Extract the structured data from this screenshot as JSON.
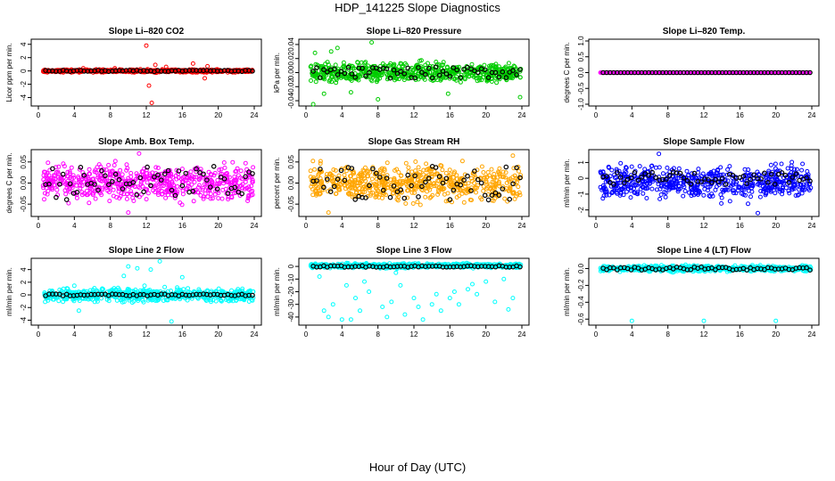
{
  "figure": {
    "title": "HDP_141225  Slope Diagnostics",
    "xlabel": "Hour of Day (UTC)"
  },
  "chart_data": [
    {
      "type": "scatter",
      "title": "Slope Li–820 CO2",
      "ylabel": "Licor ppm per min.",
      "color": "#ff0000",
      "xlim": [
        0,
        24
      ],
      "xticks": [
        0,
        4,
        8,
        12,
        16,
        20,
        24
      ],
      "ylim": [
        -5,
        4.5
      ],
      "yticks": [
        -4,
        -2,
        0,
        2,
        4
      ],
      "ytick_labels": [
        "-4",
        "-2",
        "0",
        "2",
        "4"
      ],
      "series": [
        {
          "name": "samples",
          "band": [
            -0.3,
            0.3
          ],
          "outliers": [
            [
              12.0,
              3.8
            ],
            [
              12.3,
              -2.2
            ],
            [
              12.6,
              -4.8
            ],
            [
              13.0,
              0.9
            ],
            [
              14.2,
              0.6
            ],
            [
              17.2,
              1.1
            ],
            [
              18.5,
              -1.1
            ],
            [
              18.8,
              0.7
            ],
            [
              5.0,
              0.4
            ],
            [
              8.5,
              0.4
            ]
          ]
        },
        {
          "name": "mean",
          "center": 0.0,
          "spread": 0.1
        }
      ]
    },
    {
      "type": "scatter",
      "title": "Slope Li–820 Pressure",
      "ylabel": "kPa per min.",
      "color": "#00cc00",
      "xlim": [
        0,
        24
      ],
      "xticks": [
        0,
        4,
        8,
        12,
        16,
        20,
        24
      ],
      "ylim": [
        -0.045,
        0.045
      ],
      "yticks": [
        -0.04,
        -0.02,
        0,
        0.02,
        0.04
      ],
      "ytick_labels": [
        "-0.04",
        "-0.02",
        "0.00",
        "0.02",
        "0.04"
      ],
      "series": [
        {
          "name": "samples",
          "band": [
            -0.02,
            0.02
          ],
          "outliers": [
            [
              1.0,
              0.028
            ],
            [
              2.0,
              -0.03
            ],
            [
              3.5,
              0.035
            ],
            [
              5.0,
              -0.028
            ],
            [
              7.3,
              0.043
            ],
            [
              8.0,
              -0.038
            ],
            [
              15.8,
              -0.03
            ],
            [
              23.8,
              -0.035
            ],
            [
              0.8,
              -0.045
            ],
            [
              2.8,
              0.03
            ]
          ]
        },
        {
          "name": "mean",
          "center": 0.0,
          "spread": 0.008
        }
      ]
    },
    {
      "type": "scatter",
      "title": "Slope Li–820 Temp.",
      "ylabel": "degrees C per min.",
      "color": "#ff00ff",
      "xlim": [
        0,
        24
      ],
      "xticks": [
        0,
        4,
        8,
        12,
        16,
        20,
        24
      ],
      "ylim": [
        -1.0,
        1.0
      ],
      "yticks": [
        -1,
        -0.5,
        0,
        0.5,
        1
      ],
      "ytick_labels": [
        "-1.0",
        "-0.5",
        "0.0",
        "0.5",
        "1.0"
      ],
      "series": [
        {
          "name": "samples",
          "band": [
            0,
            0
          ],
          "outliers": []
        },
        {
          "name": "mean",
          "center": 0.0,
          "spread": 0.0
        }
      ]
    },
    {
      "type": "scatter",
      "title": "Slope Amb. Box Temp.",
      "ylabel": "degrees C per min.",
      "color": "#ff00ff",
      "xlim": [
        0,
        24
      ],
      "xticks": [
        0,
        4,
        8,
        12,
        16,
        20,
        24
      ],
      "ylim": [
        -0.075,
        0.075
      ],
      "yticks": [
        -0.05,
        0,
        0.05
      ],
      "ytick_labels": [
        "-0.05",
        "0.00",
        "0.05"
      ],
      "series": [
        {
          "name": "samples",
          "band": [
            -0.06,
            0.06
          ],
          "outliers": [
            [
              11.2,
              0.07
            ],
            [
              10.0,
              -0.07
            ]
          ]
        },
        {
          "name": "mean",
          "center": 0.0,
          "spread": 0.04
        }
      ]
    },
    {
      "type": "scatter",
      "title": "Slope Gas Stream RH",
      "ylabel": "percent per min.",
      "color": "#ffa500",
      "xlim": [
        0,
        24
      ],
      "xticks": [
        0,
        4,
        8,
        12,
        16,
        20,
        24
      ],
      "ylim": [
        -0.075,
        0.075
      ],
      "yticks": [
        -0.05,
        0,
        0.05
      ],
      "ytick_labels": [
        "-0.05",
        "0.00",
        "0.05"
      ],
      "series": [
        {
          "name": "samples",
          "band": [
            -0.06,
            0.06
          ],
          "outliers": [
            [
              2.5,
              -0.07
            ],
            [
              23.0,
              0.065
            ]
          ]
        },
        {
          "name": "mean",
          "center": 0.0,
          "spread": 0.04
        }
      ]
    },
    {
      "type": "scatter",
      "title": "Slope Sample Flow",
      "ylabel": "ml/min per min.",
      "color": "#0000ff",
      "xlim": [
        0,
        24
      ],
      "xticks": [
        0,
        4,
        8,
        12,
        16,
        20,
        24
      ],
      "ylim": [
        -2.3,
        1.7
      ],
      "yticks": [
        -2,
        -1,
        0,
        1
      ],
      "ytick_labels": [
        "-2",
        "-1",
        "0",
        "1"
      ],
      "series": [
        {
          "name": "samples",
          "band": [
            -1.7,
            1.2
          ],
          "outliers": [
            [
              7.0,
              1.55
            ],
            [
              18.0,
              -2.2
            ]
          ]
        },
        {
          "name": "mean",
          "center": 0.0,
          "spread": 0.4
        }
      ]
    },
    {
      "type": "scatter",
      "title": "Slope Line 2 Flow",
      "ylabel": "ml/min per min.",
      "color": "#00ffff",
      "xlim": [
        0,
        24
      ],
      "xticks": [
        0,
        4,
        8,
        12,
        16,
        20,
        24
      ],
      "ylim": [
        -4.5,
        5.5
      ],
      "yticks": [
        -4,
        -2,
        0,
        2,
        4
      ],
      "ytick_labels": [
        "-4",
        "-2",
        "0",
        "2",
        "4"
      ],
      "series": [
        {
          "name": "samples",
          "band": [
            -1.5,
            1.5
          ],
          "outliers": [
            [
              10.0,
              4.5
            ],
            [
              11.0,
              4.2
            ],
            [
              12.5,
              4.0
            ],
            [
              13.5,
              5.3
            ],
            [
              14.8,
              -4.2
            ],
            [
              9.5,
              3.0
            ],
            [
              16.0,
              2.8
            ],
            [
              4.5,
              -2.5
            ]
          ]
        },
        {
          "name": "mean",
          "center": 0.0,
          "spread": 0.15
        }
      ]
    },
    {
      "type": "scatter",
      "title": "Slope Line 3 Flow",
      "ylabel": "ml/min per min.",
      "color": "#00ffff",
      "xlim": [
        0,
        24
      ],
      "xticks": [
        0,
        4,
        8,
        12,
        16,
        20,
        24
      ],
      "ylim": [
        -45,
        5
      ],
      "yticks": [
        -40,
        -30,
        -20,
        -10,
        0
      ],
      "ytick_labels": [
        "-40",
        "-30",
        "-20",
        "-10",
        "0"
      ],
      "series": [
        {
          "name": "samples",
          "band": [
            -2,
            3
          ],
          "outliers": [
            [
              2.0,
              -35
            ],
            [
              2.5,
              -40
            ],
            [
              3.0,
              -30
            ],
            [
              4.0,
              -42
            ],
            [
              4.5,
              -15
            ],
            [
              5.5,
              -25
            ],
            [
              6.0,
              -35
            ],
            [
              6.5,
              -12
            ],
            [
              7.0,
              -20
            ],
            [
              8.5,
              -32
            ],
            [
              9.0,
              -40
            ],
            [
              9.5,
              -28
            ],
            [
              10.5,
              -15
            ],
            [
              11.0,
              -38
            ],
            [
              12.0,
              -25
            ],
            [
              12.5,
              -32
            ],
            [
              13.0,
              -42
            ],
            [
              14.0,
              -30
            ],
            [
              14.5,
              -22
            ],
            [
              15.0,
              -35
            ],
            [
              16.0,
              -25
            ],
            [
              16.5,
              -20
            ],
            [
              17.0,
              -30
            ],
            [
              18.0,
              -18
            ],
            [
              18.5,
              -14
            ],
            [
              19.0,
              -22
            ],
            [
              20.0,
              -12
            ],
            [
              21.0,
              -28
            ],
            [
              22.0,
              -10
            ],
            [
              22.5,
              -34
            ],
            [
              23.0,
              -25
            ],
            [
              5.0,
              -42
            ],
            [
              1.5,
              -8
            ],
            [
              10.0,
              -5
            ]
          ]
        },
        {
          "name": "mean",
          "center": 0.0,
          "spread": 0.6
        }
      ]
    },
    {
      "type": "scatter",
      "title": "Slope Line 4 (LT) Flow",
      "ylabel": "ml/min per min.",
      "color": "#00ffff",
      "xlim": [
        0,
        24
      ],
      "xticks": [
        0,
        4,
        8,
        12,
        16,
        20,
        24
      ],
      "ylim": [
        -0.65,
        0.1
      ],
      "yticks": [
        -0.6,
        -0.4,
        -0.2,
        0
      ],
      "ytick_labels": [
        "-0.6",
        "-0.4",
        "-0.2",
        "0.0"
      ],
      "series": [
        {
          "name": "samples",
          "band": [
            -0.05,
            0.05
          ],
          "outliers": [
            [
              4.0,
              -0.62
            ],
            [
              12.0,
              -0.62
            ],
            [
              20.0,
              -0.62
            ]
          ]
        },
        {
          "name": "mean",
          "center": 0.0,
          "spread": 0.02
        }
      ]
    }
  ]
}
